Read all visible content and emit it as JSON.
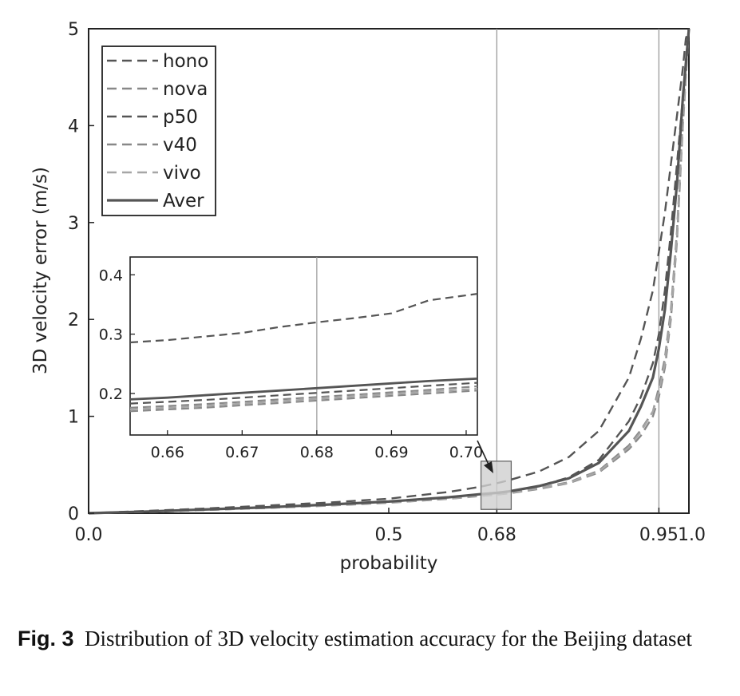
{
  "chart_data": {
    "type": "line",
    "xlabel": "probability",
    "ylabel": "3D velocity error (m/s)",
    "xlim": [
      0.0,
      1.0
    ],
    "ylim": [
      0,
      5
    ],
    "x_ticks": [
      "0.0",
      "0.5",
      "0.68",
      "0.95",
      "1.0"
    ],
    "y_ticks": [
      "0",
      "1",
      "2",
      "3",
      "4",
      "5"
    ],
    "reference_lines_x": [
      0.68,
      0.95
    ],
    "legend_position": "top-left",
    "series": [
      {
        "name": "hono",
        "style": "dashed",
        "color": "#555555",
        "x": [
          0.0,
          0.1,
          0.2,
          0.3,
          0.4,
          0.5,
          0.6,
          0.65,
          0.68,
          0.7,
          0.75,
          0.8,
          0.85,
          0.9,
          0.92,
          0.94,
          0.95,
          0.96,
          0.97,
          0.98,
          0.99,
          0.995,
          1.0
        ],
        "y": [
          0.0,
          0.025,
          0.05,
          0.08,
          0.11,
          0.15,
          0.22,
          0.27,
          0.31,
          0.34,
          0.43,
          0.58,
          0.85,
          1.4,
          1.8,
          2.3,
          2.7,
          3.1,
          3.6,
          4.1,
          4.6,
          4.9,
          5.0
        ]
      },
      {
        "name": "nova",
        "style": "dashed",
        "color": "#888888",
        "x": [
          0.0,
          0.1,
          0.2,
          0.3,
          0.4,
          0.5,
          0.6,
          0.65,
          0.68,
          0.7,
          0.75,
          0.8,
          0.85,
          0.9,
          0.92,
          0.94,
          0.95,
          0.96,
          0.97,
          0.98,
          0.99,
          1.0
        ],
        "y": [
          0.0,
          0.015,
          0.035,
          0.055,
          0.08,
          0.11,
          0.15,
          0.18,
          0.195,
          0.21,
          0.26,
          0.32,
          0.44,
          0.7,
          0.86,
          1.05,
          1.3,
          1.6,
          2.1,
          2.9,
          4.1,
          5.0
        ]
      },
      {
        "name": "p50",
        "style": "dashed",
        "color": "#555555",
        "x": [
          0.0,
          0.1,
          0.2,
          0.3,
          0.4,
          0.5,
          0.6,
          0.65,
          0.68,
          0.7,
          0.75,
          0.8,
          0.85,
          0.9,
          0.92,
          0.94,
          0.95,
          0.96,
          0.97,
          0.98,
          0.99,
          1.0
        ],
        "y": [
          0.0,
          0.016,
          0.037,
          0.058,
          0.085,
          0.115,
          0.155,
          0.185,
          0.2,
          0.22,
          0.28,
          0.37,
          0.55,
          0.95,
          1.2,
          1.55,
          1.85,
          2.3,
          2.9,
          3.6,
          4.3,
          5.0
        ]
      },
      {
        "name": "v40",
        "style": "dashed",
        "color": "#888888",
        "x": [
          0.0,
          0.1,
          0.2,
          0.3,
          0.4,
          0.5,
          0.6,
          0.65,
          0.68,
          0.7,
          0.75,
          0.8,
          0.85,
          0.9,
          0.92,
          0.94,
          0.95,
          0.96,
          0.97,
          0.98,
          0.99,
          1.0
        ],
        "y": [
          0.0,
          0.014,
          0.034,
          0.054,
          0.078,
          0.108,
          0.148,
          0.176,
          0.192,
          0.205,
          0.25,
          0.31,
          0.42,
          0.66,
          0.8,
          1.0,
          1.2,
          1.5,
          2.0,
          2.8,
          4.0,
          5.0
        ]
      },
      {
        "name": "vivo",
        "style": "dashed",
        "color": "#a6a6a6",
        "x": [
          0.0,
          0.1,
          0.2,
          0.3,
          0.4,
          0.5,
          0.6,
          0.65,
          0.68,
          0.7,
          0.75,
          0.8,
          0.85,
          0.9,
          0.92,
          0.94,
          0.95,
          0.96,
          0.97,
          0.98,
          0.99,
          1.0
        ],
        "y": [
          0.0,
          0.015,
          0.035,
          0.055,
          0.08,
          0.11,
          0.15,
          0.178,
          0.194,
          0.208,
          0.255,
          0.315,
          0.43,
          0.68,
          0.84,
          1.05,
          1.25,
          1.55,
          2.05,
          2.85,
          4.05,
          5.0
        ]
      },
      {
        "name": "Aver",
        "style": "solid",
        "color": "#555555",
        "x": [
          0.0,
          0.1,
          0.2,
          0.3,
          0.4,
          0.5,
          0.6,
          0.65,
          0.68,
          0.7,
          0.75,
          0.8,
          0.85,
          0.9,
          0.92,
          0.94,
          0.95,
          0.96,
          0.97,
          0.98,
          0.99,
          1.0
        ],
        "y": [
          0.0,
          0.018,
          0.04,
          0.062,
          0.09,
          0.12,
          0.165,
          0.195,
          0.21,
          0.225,
          0.28,
          0.36,
          0.52,
          0.85,
          1.1,
          1.4,
          1.7,
          2.1,
          2.7,
          3.4,
          4.3,
          5.0
        ]
      }
    ],
    "inset": {
      "xlim": [
        0.655,
        0.7015
      ],
      "ylim": [
        0.13,
        0.43
      ],
      "x_ticks": [
        "0.66",
        "0.67",
        "0.68",
        "0.69",
        "0.70"
      ],
      "y_ticks": [
        "0.2",
        "0.3",
        "0.4"
      ],
      "reference_line_x": 0.68,
      "zoom_region": {
        "x": [
          0.655,
          0.7
        ],
        "y": [
          0.13,
          0.43
        ]
      },
      "series": [
        {
          "name": "hono",
          "style": "dashed",
          "color": "#555555",
          "x": [
            0.655,
            0.66,
            0.665,
            0.67,
            0.675,
            0.68,
            0.685,
            0.69,
            0.695,
            0.7015
          ],
          "y": [
            0.286,
            0.29,
            0.296,
            0.302,
            0.312,
            0.32,
            0.327,
            0.335,
            0.357,
            0.368
          ]
        },
        {
          "name": "nova",
          "style": "dashed",
          "color": "#888888",
          "x": [
            0.655,
            0.66,
            0.665,
            0.67,
            0.675,
            0.68,
            0.685,
            0.69,
            0.695,
            0.7015
          ],
          "y": [
            0.176,
            0.179,
            0.182,
            0.186,
            0.19,
            0.194,
            0.198,
            0.202,
            0.206,
            0.212
          ]
        },
        {
          "name": "p50",
          "style": "dashed",
          "color": "#555555",
          "x": [
            0.655,
            0.66,
            0.665,
            0.67,
            0.675,
            0.68,
            0.685,
            0.69,
            0.695,
            0.7015
          ],
          "y": [
            0.183,
            0.186,
            0.189,
            0.193,
            0.197,
            0.201,
            0.205,
            0.209,
            0.213,
            0.218
          ]
        },
        {
          "name": "v40",
          "style": "dashed",
          "color": "#888888",
          "x": [
            0.655,
            0.66,
            0.665,
            0.67,
            0.675,
            0.68,
            0.685,
            0.69,
            0.695,
            0.7015
          ],
          "y": [
            0.17,
            0.173,
            0.176,
            0.18,
            0.184,
            0.188,
            0.192,
            0.196,
            0.2,
            0.205
          ]
        },
        {
          "name": "vivo",
          "style": "dashed",
          "color": "#a6a6a6",
          "x": [
            0.655,
            0.66,
            0.665,
            0.67,
            0.675,
            0.68,
            0.685,
            0.69,
            0.695,
            0.7015
          ],
          "y": [
            0.173,
            0.176,
            0.179,
            0.183,
            0.187,
            0.191,
            0.195,
            0.199,
            0.203,
            0.208
          ]
        },
        {
          "name": "Aver",
          "style": "solid",
          "color": "#555555",
          "x": [
            0.655,
            0.66,
            0.665,
            0.67,
            0.675,
            0.68,
            0.685,
            0.69,
            0.695,
            0.7015
          ],
          "y": [
            0.19,
            0.193,
            0.197,
            0.201,
            0.205,
            0.209,
            0.213,
            0.217,
            0.221,
            0.225
          ]
        }
      ]
    }
  },
  "caption": {
    "label": "Fig. 3",
    "text": "Distribution of 3D velocity estimation accuracy for the Beijing dataset"
  }
}
